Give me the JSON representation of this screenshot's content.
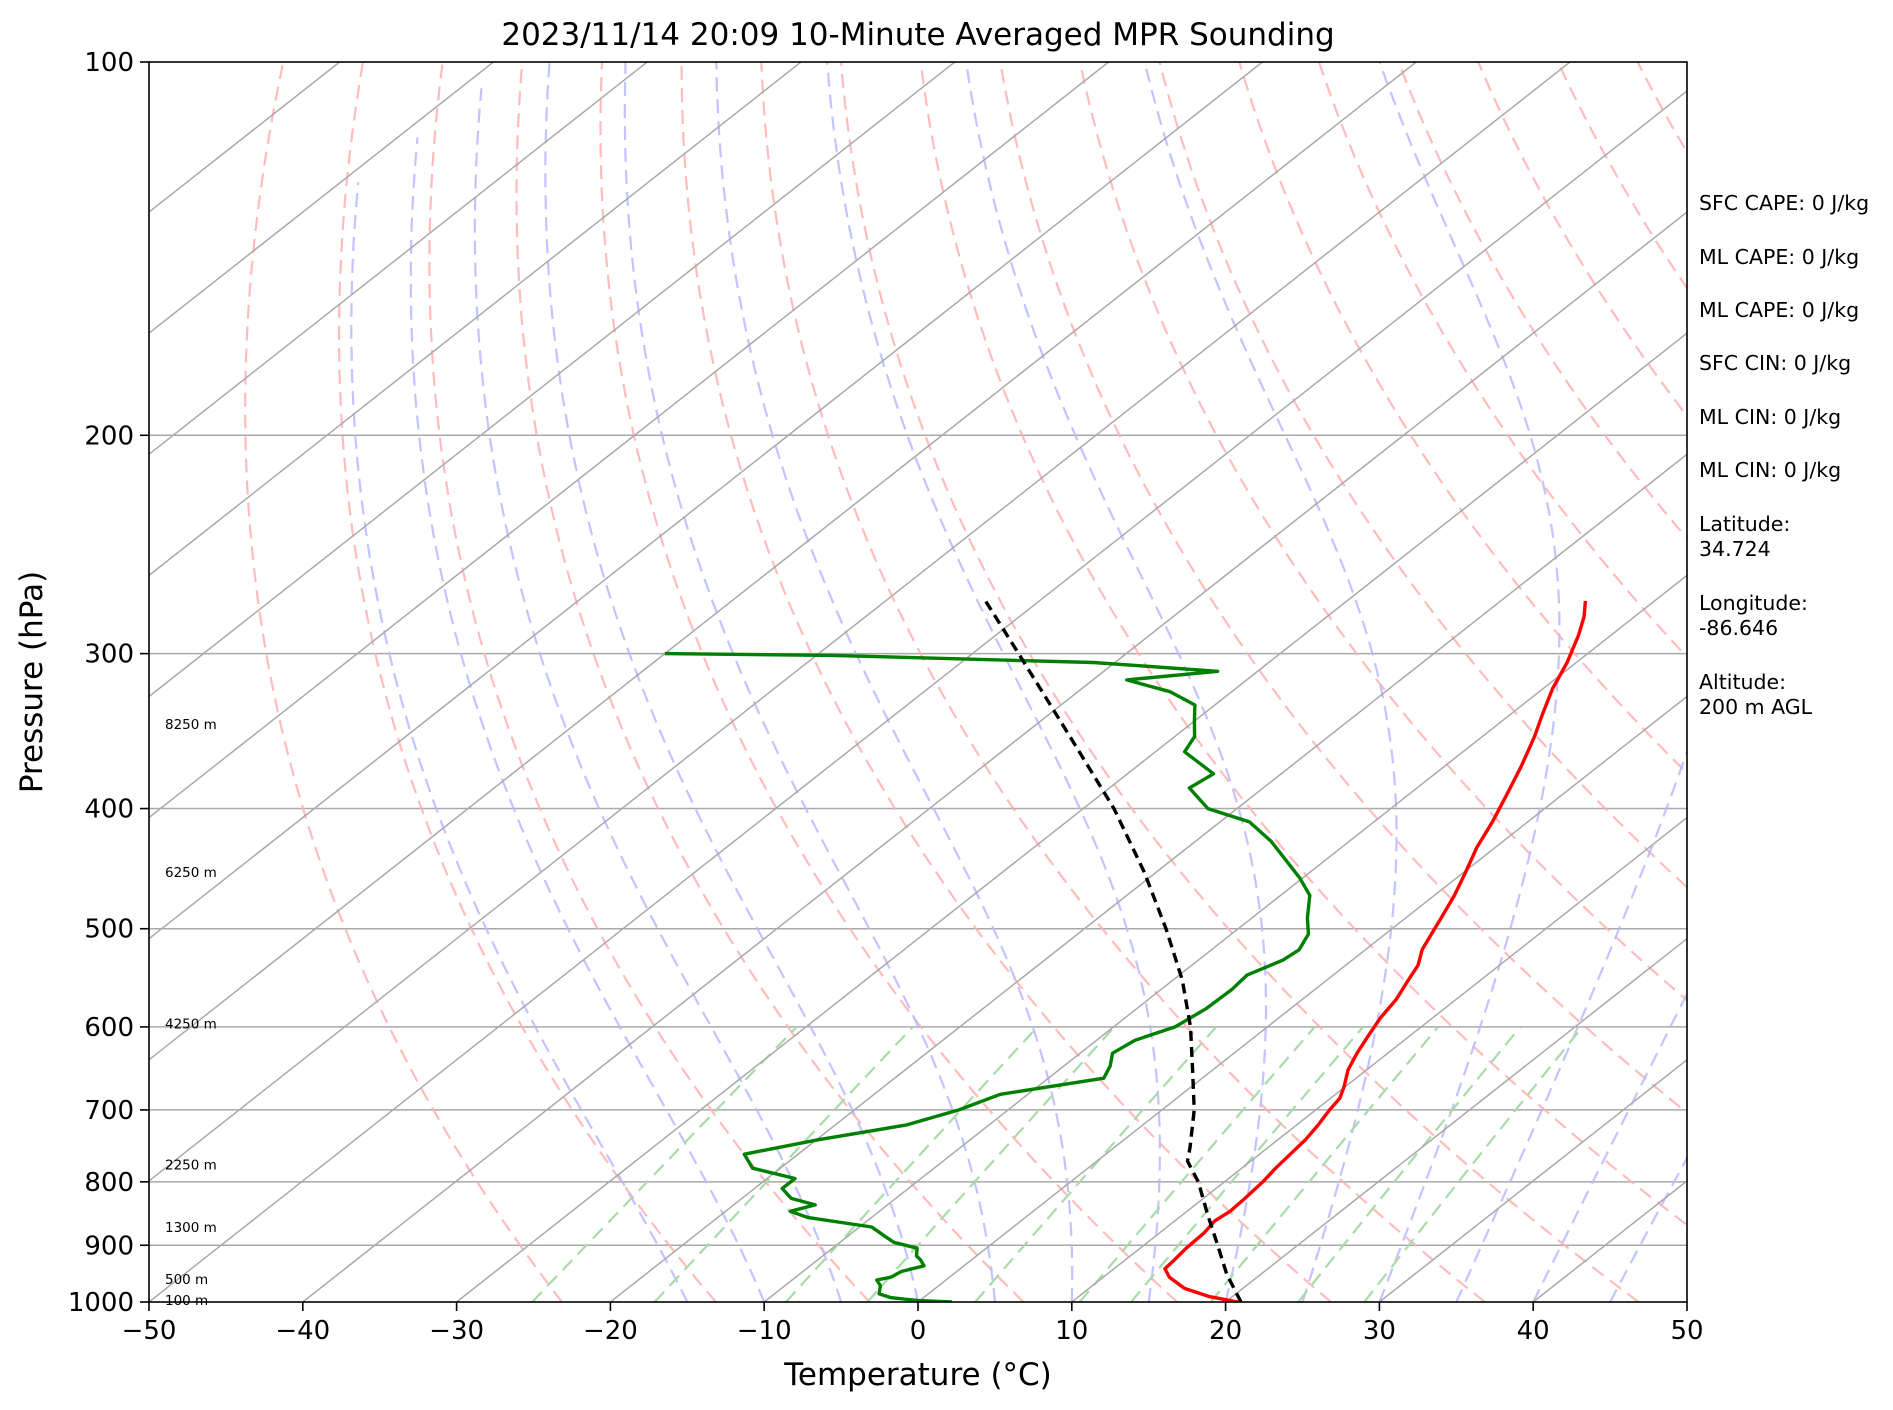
{
  "chart_data": {
    "type": "skew-t",
    "title": "2023/11/14 20:09 10-Minute Averaged MPR Sounding",
    "xlabel": "Temperature (°C)",
    "ylabel": "Pressure (hPa)",
    "xlim": [
      -50,
      50
    ],
    "ylim": [
      1000,
      100
    ],
    "x_scale": "linear (skewed isotherms)",
    "y_scale": "log",
    "x_ticks": [
      "−50",
      "−40",
      "−30",
      "−20",
      "−10",
      "0",
      "10",
      "20",
      "30",
      "40",
      "50"
    ],
    "y_ticks": [
      "100",
      "200",
      "300",
      "400",
      "500",
      "600",
      "700",
      "800",
      "900",
      "1000"
    ],
    "grid": true,
    "series": [
      {
        "name": "",
        "color": "#ff0000",
        "points": [
          [
            1000,
            20.8
          ],
          [
            990,
            18.5
          ],
          [
            975,
            16.2
          ],
          [
            955,
            14.3
          ],
          [
            940,
            13.3
          ],
          [
            925,
            13.2
          ],
          [
            905,
            13.0
          ],
          [
            880,
            12.9
          ],
          [
            860,
            12.6
          ],
          [
            845,
            12.8
          ],
          [
            825,
            12.7
          ],
          [
            800,
            12.5
          ],
          [
            780,
            12.2
          ],
          [
            760,
            12.0
          ],
          [
            740,
            11.8
          ],
          [
            720,
            11.4
          ],
          [
            700,
            10.9
          ],
          [
            685,
            10.6
          ],
          [
            670,
            9.9
          ],
          [
            650,
            8.8
          ],
          [
            630,
            8.0
          ],
          [
            610,
            7.3
          ],
          [
            590,
            6.6
          ],
          [
            570,
            6.1
          ],
          [
            550,
            5.3
          ],
          [
            535,
            4.7
          ],
          [
            520,
            3.7
          ],
          [
            505,
            3.0
          ],
          [
            490,
            2.3
          ],
          [
            470,
            1.3
          ],
          [
            450,
            0.1
          ],
          [
            430,
            -1.2
          ],
          [
            410,
            -2.3
          ],
          [
            390,
            -3.6
          ],
          [
            370,
            -5.0
          ],
          [
            350,
            -6.6
          ],
          [
            335,
            -8.0
          ],
          [
            320,
            -9.4
          ],
          [
            305,
            -10.6
          ],
          [
            290,
            -12.1
          ],
          [
            280,
            -13.3
          ],
          [
            272,
            -14.5
          ]
        ]
      },
      {
        "name": "",
        "color": "#008000",
        "points": [
          [
            1000,
            2.2
          ],
          [
            997,
            -0.2
          ],
          [
            992,
            -2.1
          ],
          [
            985,
            -3.2
          ],
          [
            970,
            -3.8
          ],
          [
            960,
            -4.5
          ],
          [
            955,
            -3.8
          ],
          [
            945,
            -3.6
          ],
          [
            935,
            -2.6
          ],
          [
            925,
            -3.3
          ],
          [
            918,
            -3.9
          ],
          [
            905,
            -4.5
          ],
          [
            895,
            -6.5
          ],
          [
            885,
            -7.6
          ],
          [
            870,
            -9.2
          ],
          [
            855,
            -14.1
          ],
          [
            845,
            -15.8
          ],
          [
            835,
            -14.7
          ],
          [
            825,
            -16.8
          ],
          [
            810,
            -18.2
          ],
          [
            795,
            -18.2
          ],
          [
            780,
            -21.8
          ],
          [
            760,
            -23.5
          ],
          [
            740,
            -19.9
          ],
          [
            720,
            -15.4
          ],
          [
            700,
            -13.2
          ],
          [
            680,
            -11.8
          ],
          [
            660,
            -6.4
          ],
          [
            645,
            -7.0
          ],
          [
            630,
            -7.9
          ],
          [
            615,
            -7.5
          ],
          [
            600,
            -6.0
          ],
          [
            580,
            -5.5
          ],
          [
            560,
            -5.4
          ],
          [
            545,
            -5.6
          ],
          [
            530,
            -4.5
          ],
          [
            520,
            -4.3
          ],
          [
            505,
            -5.0
          ],
          [
            490,
            -6.4
          ],
          [
            470,
            -8.1
          ],
          [
            455,
            -10.2
          ],
          [
            440,
            -12.6
          ],
          [
            425,
            -15.1
          ],
          [
            410,
            -18.1
          ],
          [
            400,
            -21.9
          ],
          [
            385,
            -24.8
          ],
          [
            375,
            -24.4
          ],
          [
            360,
            -28.1
          ],
          [
            350,
            -28.7
          ],
          [
            340,
            -30.0
          ],
          [
            330,
            -31.3
          ],
          [
            322,
            -34.0
          ],
          [
            315,
            -37.8
          ],
          [
            310,
            -32.6
          ],
          [
            305,
            -41.4
          ],
          [
            301,
            -59.0
          ],
          [
            300,
            -70.0
          ]
        ]
      },
      {
        "name": "",
        "color": "#000000",
        "dashed": true,
        "points": [
          [
            1000,
            21.0
          ],
          [
            950,
            17.8
          ],
          [
            900,
            14.8
          ],
          [
            850,
            11.6
          ],
          [
            800,
            8.3
          ],
          [
            770,
            5.9
          ],
          [
            750,
            4.9
          ],
          [
            700,
            2.1
          ],
          [
            650,
            -1.3
          ],
          [
            600,
            -5.0
          ],
          [
            550,
            -9.4
          ],
          [
            500,
            -14.7
          ],
          [
            450,
            -20.8
          ],
          [
            400,
            -28.0
          ],
          [
            350,
            -36.8
          ],
          [
            300,
            -47.0
          ],
          [
            270,
            -54.0
          ]
        ]
      }
    ],
    "height_labels": [
      "8250 m",
      "6250 m",
      "4250 m",
      "2250 m",
      "1300 m",
      "500 m",
      "100 m"
    ],
    "info_panel": [
      "SFC CAPE: 0 J/kg",
      "ML CAPE: 0 J/kg",
      "ML CAPE: 0 J/kg",
      "SFC CIN: 0 J/kg",
      "ML CIN: 0 J/kg",
      "ML CIN: 0 J/kg",
      "Latitude:",
      "34.724",
      "Longitude:",
      "-86.646",
      "Altitude:",
      "200 m AGL"
    ],
    "colors": {
      "temperature": "#ff0000",
      "dewpoint": "#008000",
      "parcel": "#000000",
      "isotherms": "#a9a9a9",
      "dry_adiabats": "#ffb0b0",
      "moist_adiabats": "#b8b8ff",
      "mixing_ratio": "#a8dba8"
    }
  }
}
